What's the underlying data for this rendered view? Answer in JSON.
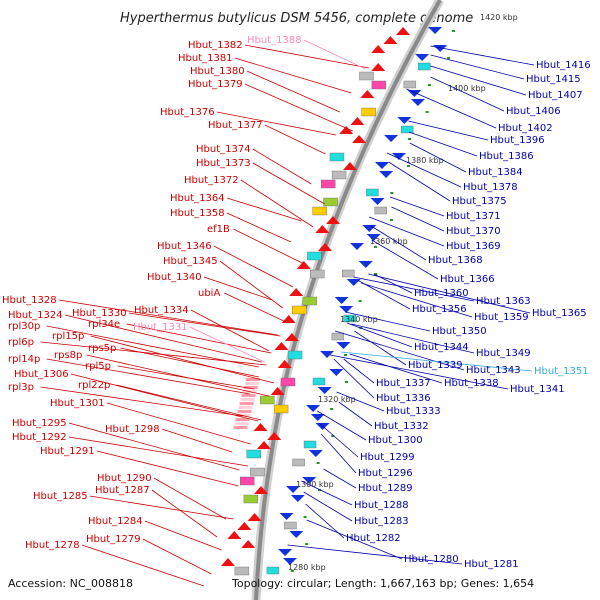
{
  "title": "Hyperthermus butylicus DSM 5456, complete genome",
  "footer": {
    "accession": "Accession: NC_008818",
    "summary": "Topology: circular; Length: 1,667,163 bp; Genes: 1,654"
  },
  "colors": {
    "left_label": "#cc0000",
    "left_label_faded": "#ff88bb",
    "right_label": "#0000aa",
    "right_label_faded": "#33aadd",
    "backbone": "#888888",
    "forward_gene": "#ee1111",
    "reverse_gene": "#1133dd"
  },
  "kbp_ticks": [
    {
      "label": "1420 kbp"
    },
    {
      "label": "1400 kbp"
    },
    {
      "label": "1380 kbp"
    },
    {
      "label": "1360 kbp"
    },
    {
      "label": "1340 kbp"
    },
    {
      "label": "1320 kbp"
    },
    {
      "label": "1300 kbp"
    },
    {
      "label": "1280 kbp"
    }
  ],
  "left_labels": [
    {
      "text": "Hbut_1382",
      "faded": false
    },
    {
      "text": "Hbut_1388",
      "faded": true
    },
    {
      "text": "Hbut_1381",
      "faded": false
    },
    {
      "text": "Hbut_1380",
      "faded": false
    },
    {
      "text": "Hbut_1379",
      "faded": false
    },
    {
      "text": "Hbut_1376",
      "faded": false
    },
    {
      "text": "Hbut_1377",
      "faded": false
    },
    {
      "text": "Hbut_1374",
      "faded": false
    },
    {
      "text": "Hbut_1373",
      "faded": false
    },
    {
      "text": "Hbut_1372",
      "faded": false
    },
    {
      "text": "Hbut_1364",
      "faded": false
    },
    {
      "text": "Hbut_1358",
      "faded": false
    },
    {
      "text": "ef1B",
      "faded": false
    },
    {
      "text": "Hbut_1346",
      "faded": false
    },
    {
      "text": "Hbut_1345",
      "faded": false
    },
    {
      "text": "Hbut_1340",
      "faded": false
    },
    {
      "text": "ubiA",
      "faded": false
    },
    {
      "text": "Hbut_1328",
      "faded": false
    },
    {
      "text": "Hbut_1334",
      "faded": false
    },
    {
      "text": "Hbut_1324",
      "faded": false
    },
    {
      "text": "Hbut_1330",
      "faded": false
    },
    {
      "text": "rpl34e",
      "faded": false
    },
    {
      "text": "Hbut_1331",
      "faded": true
    },
    {
      "text": "rpl30p",
      "faded": false
    },
    {
      "text": "rpl15p",
      "faded": false
    },
    {
      "text": "rpl6p",
      "faded": false
    },
    {
      "text": "rps5p",
      "faded": false
    },
    {
      "text": "rpl14p",
      "faded": false
    },
    {
      "text": "rps8p",
      "faded": false
    },
    {
      "text": "Hbut_1306",
      "faded": false
    },
    {
      "text": "rpl5p",
      "faded": false
    },
    {
      "text": "rpl3p",
      "faded": false
    },
    {
      "text": "rpl22p",
      "faded": false
    },
    {
      "text": "Hbut_1301",
      "faded": false
    },
    {
      "text": "Hbut_1295",
      "faded": false
    },
    {
      "text": "Hbut_1298",
      "faded": false
    },
    {
      "text": "Hbut_1292",
      "faded": false
    },
    {
      "text": "Hbut_1291",
      "faded": false
    },
    {
      "text": "Hbut_1290",
      "faded": false
    },
    {
      "text": "Hbut_1287",
      "faded": false
    },
    {
      "text": "Hbut_1285",
      "faded": false
    },
    {
      "text": "Hbut_1284",
      "faded": false
    },
    {
      "text": "Hbut_1279",
      "faded": false
    },
    {
      "text": "Hbut_1278",
      "faded": false
    }
  ],
  "right_labels": [
    {
      "text": "Hbut_1416",
      "faded": false
    },
    {
      "text": "Hbut_1415",
      "faded": false
    },
    {
      "text": "Hbut_1407",
      "faded": false
    },
    {
      "text": "Hbut_1406",
      "faded": false
    },
    {
      "text": "Hbut_1402",
      "faded": false
    },
    {
      "text": "Hbut_1396",
      "faded": false
    },
    {
      "text": "Hbut_1386",
      "faded": false
    },
    {
      "text": "Hbut_1384",
      "faded": false
    },
    {
      "text": "Hbut_1378",
      "faded": false
    },
    {
      "text": "Hbut_1375",
      "faded": false
    },
    {
      "text": "Hbut_1371",
      "faded": false
    },
    {
      "text": "Hbut_1370",
      "faded": false
    },
    {
      "text": "Hbut_1369",
      "faded": false
    },
    {
      "text": "Hbut_1368",
      "faded": false
    },
    {
      "text": "Hbut_1366",
      "faded": false
    },
    {
      "text": "Hbut_1360",
      "faded": false
    },
    {
      "text": "Hbut_1363",
      "faded": false
    },
    {
      "text": "Hbut_1356",
      "faded": false
    },
    {
      "text": "Hbut_1359",
      "faded": false
    },
    {
      "text": "Hbut_1365",
      "faded": false
    },
    {
      "text": "Hbut_1350",
      "faded": false
    },
    {
      "text": "Hbut_1344",
      "faded": false
    },
    {
      "text": "Hbut_1349",
      "faded": false
    },
    {
      "text": "Hbut_1339",
      "faded": false
    },
    {
      "text": "Hbut_1343",
      "faded": false
    },
    {
      "text": "Hbut_1351",
      "faded": true
    },
    {
      "text": "Hbut_1337",
      "faded": false
    },
    {
      "text": "Hbut_1338",
      "faded": false
    },
    {
      "text": "Hbut_1341",
      "faded": false
    },
    {
      "text": "Hbut_1336",
      "faded": false
    },
    {
      "text": "Hbut_1333",
      "faded": false
    },
    {
      "text": "Hbut_1332",
      "faded": false
    },
    {
      "text": "Hbut_1300",
      "faded": false
    },
    {
      "text": "Hbut_1299",
      "faded": false
    },
    {
      "text": "Hbut_1296",
      "faded": false
    },
    {
      "text": "Hbut_1289",
      "faded": false
    },
    {
      "text": "Hbut_1288",
      "faded": false
    },
    {
      "text": "Hbut_1283",
      "faded": false
    },
    {
      "text": "Hbut_1282",
      "faded": false
    },
    {
      "text": "Hbut_1280",
      "faded": false
    },
    {
      "text": "Hbut_1281",
      "faded": false
    }
  ]
}
